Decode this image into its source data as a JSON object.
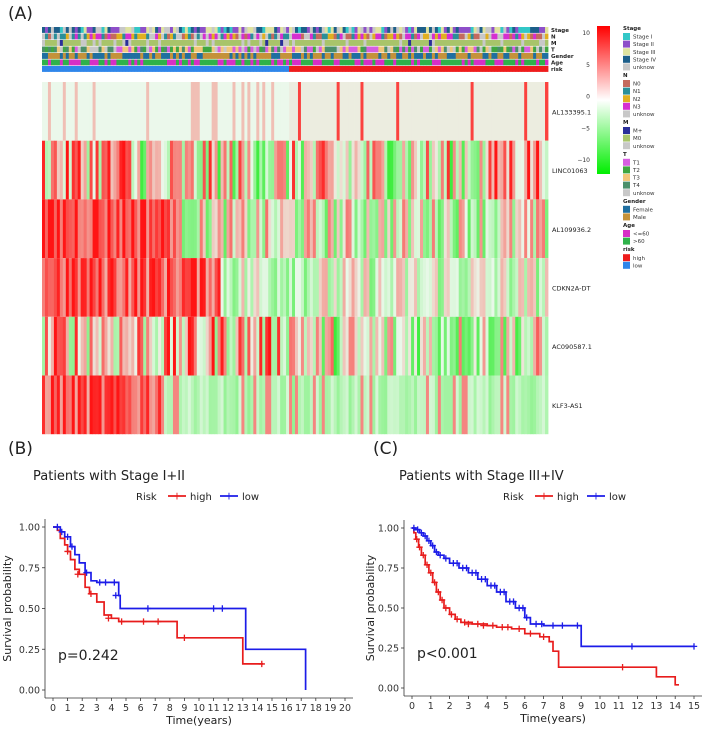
{
  "panels": {
    "a": "(A)",
    "b": "(B)",
    "c": "(C)"
  },
  "chart_data": [
    {
      "type": "heatmap",
      "panel": "(A)",
      "annotation_tracks": [
        "Stage",
        "N",
        "M",
        "T",
        "Gender",
        "Age",
        "risk"
      ],
      "rows": [
        "AL133395.1",
        "LINC01063",
        "AL109936.2",
        "CDKN2A-DT",
        "AC090587.1",
        "KLF3-AS1"
      ],
      "colorbar": {
        "ticks": [
          10,
          5,
          0,
          -5,
          -10
        ],
        "high_color": "#ff0000",
        "mid_color": "#ffffff",
        "low_color": "#00ee00"
      },
      "legend": [
        {
          "title": "Stage",
          "items": [
            {
              "label": "Stage I",
              "color": "#33c7c7"
            },
            {
              "label": "Stage II",
              "color": "#8e4fc9"
            },
            {
              "label": "Stage III",
              "color": "#dfe3a0"
            },
            {
              "label": "Stage IV",
              "color": "#1d5f8a"
            },
            {
              "label": "unknow",
              "color": "#c8c8c8"
            }
          ]
        },
        {
          "title": "N",
          "items": [
            {
              "label": "N0",
              "color": "#c46a5e"
            },
            {
              "label": "N1",
              "color": "#2a8f99"
            },
            {
              "label": "N2",
              "color": "#e0b020"
            },
            {
              "label": "N3",
              "color": "#d62fd0"
            },
            {
              "label": "unknow",
              "color": "#c8c8c8"
            }
          ]
        },
        {
          "title": "M",
          "items": [
            {
              "label": "M+",
              "color": "#2a2f9a"
            },
            {
              "label": "M0",
              "color": "#a8c46a"
            },
            {
              "label": "unknow",
              "color": "#c8c8c8"
            }
          ]
        },
        {
          "title": "T",
          "items": [
            {
              "label": "T1",
              "color": "#d65ee0"
            },
            {
              "label": "T2",
              "color": "#3fa640"
            },
            {
              "label": "T3",
              "color": "#f2c77a"
            },
            {
              "label": "T4",
              "color": "#4a8f6a"
            },
            {
              "label": "unknow",
              "color": "#c8c8c8"
            }
          ]
        },
        {
          "title": "Gender",
          "items": [
            {
              "label": "Female",
              "color": "#1f6fa0"
            },
            {
              "label": "Male",
              "color": "#c4923a"
            }
          ]
        },
        {
          "title": "Age",
          "items": [
            {
              "label": "<=60",
              "color": "#d62fc6"
            },
            {
              "label": ">60",
              "color": "#2fb24a"
            }
          ]
        },
        {
          "title": "risk",
          "items": [
            {
              "label": "high",
              "color": "#ee1c1c"
            },
            {
              "label": "low",
              "color": "#2f86ea"
            }
          ]
        }
      ],
      "risk_low_fraction": 0.49
    },
    {
      "type": "line",
      "panel": "(B)",
      "title": "Patients with Stage I+II",
      "legend_title": "Risk",
      "xlabel": "Time(years)",
      "ylabel": "Survival probability",
      "xlim": [
        0,
        20
      ],
      "ylim": [
        0,
        1
      ],
      "xticks": [
        0,
        1,
        2,
        3,
        4,
        5,
        6,
        7,
        8,
        9,
        10,
        11,
        12,
        13,
        14,
        15,
        16,
        17,
        18,
        19,
        20
      ],
      "yticks": [
        "0.00",
        "0.25",
        "0.50",
        "0.75",
        "1.00"
      ],
      "annotation": "p=0.242",
      "series": [
        {
          "name": "high",
          "color": "#e81c1c",
          "steps": [
            [
              0,
              1.0
            ],
            [
              0.3,
              0.98
            ],
            [
              0.5,
              0.93
            ],
            [
              0.8,
              0.89
            ],
            [
              1.0,
              0.85
            ],
            [
              1.2,
              0.8
            ],
            [
              1.5,
              0.74
            ],
            [
              1.8,
              0.71
            ],
            [
              2.2,
              0.63
            ],
            [
              2.5,
              0.59
            ],
            [
              3.0,
              0.54
            ],
            [
              3.5,
              0.46
            ],
            [
              4.0,
              0.44
            ],
            [
              4.5,
              0.42
            ],
            [
              8.5,
              0.32
            ],
            [
              13.0,
              0.16
            ],
            [
              14.4,
              0.16
            ]
          ],
          "censors": [
            [
              1.0,
              0.85
            ],
            [
              1.7,
              0.71
            ],
            [
              2.6,
              0.59
            ],
            [
              3.8,
              0.44
            ],
            [
              4.7,
              0.42
            ],
            [
              6.2,
              0.42
            ],
            [
              7.2,
              0.42
            ],
            [
              9.0,
              0.32
            ],
            [
              14.3,
              0.16
            ]
          ]
        },
        {
          "name": "low",
          "color": "#1c1ce8",
          "steps": [
            [
              0,
              1.0
            ],
            [
              0.5,
              0.97
            ],
            [
              0.8,
              0.94
            ],
            [
              1.2,
              0.88
            ],
            [
              1.5,
              0.83
            ],
            [
              1.8,
              0.78
            ],
            [
              2.2,
              0.72
            ],
            [
              2.6,
              0.67
            ],
            [
              3.0,
              0.66
            ],
            [
              4.5,
              0.58
            ],
            [
              4.6,
              0.5
            ],
            [
              13.2,
              0.25
            ],
            [
              17.3,
              0.0
            ]
          ],
          "censors": [
            [
              0.3,
              1.0
            ],
            [
              0.6,
              0.97
            ],
            [
              1.0,
              0.94
            ],
            [
              1.3,
              0.88
            ],
            [
              2.3,
              0.72
            ],
            [
              3.2,
              0.66
            ],
            [
              3.6,
              0.66
            ],
            [
              4.2,
              0.66
            ],
            [
              4.3,
              0.58
            ],
            [
              6.5,
              0.5
            ],
            [
              11.0,
              0.5
            ],
            [
              11.6,
              0.5
            ]
          ]
        }
      ]
    },
    {
      "type": "line",
      "panel": "(C)",
      "title": "Patients with Stage III+IV",
      "legend_title": "Risk",
      "xlabel": "Time(years)",
      "ylabel": "Survival probability",
      "xlim": [
        0,
        15
      ],
      "ylim": [
        0,
        1
      ],
      "xticks": [
        0,
        1,
        2,
        3,
        4,
        5,
        6,
        7,
        8,
        9,
        10,
        11,
        12,
        13,
        14,
        15
      ],
      "yticks": [
        "0.00",
        "0.25",
        "0.50",
        "0.75",
        "1.00"
      ],
      "annotation": "p<0.001",
      "series": [
        {
          "name": "high",
          "color": "#e81c1c",
          "steps": [
            [
              0,
              1.0
            ],
            [
              0.1,
              0.97
            ],
            [
              0.2,
              0.93
            ],
            [
              0.35,
              0.88
            ],
            [
              0.5,
              0.83
            ],
            [
              0.7,
              0.77
            ],
            [
              0.9,
              0.72
            ],
            [
              1.1,
              0.66
            ],
            [
              1.3,
              0.6
            ],
            [
              1.5,
              0.55
            ],
            [
              1.7,
              0.5
            ],
            [
              2.0,
              0.46
            ],
            [
              2.3,
              0.43
            ],
            [
              2.6,
              0.41
            ],
            [
              3.2,
              0.4
            ],
            [
              4.0,
              0.39
            ],
            [
              4.5,
              0.38
            ],
            [
              5.3,
              0.37
            ],
            [
              6.0,
              0.34
            ],
            [
              6.8,
              0.32
            ],
            [
              7.3,
              0.29
            ],
            [
              7.5,
              0.23
            ],
            [
              7.8,
              0.13
            ],
            [
              11.0,
              0.13
            ],
            [
              13.0,
              0.07
            ],
            [
              14.0,
              0.02
            ],
            [
              14.2,
              0.02
            ]
          ],
          "censors": [
            [
              0.25,
              0.93
            ],
            [
              0.4,
              0.88
            ],
            [
              0.6,
              0.83
            ],
            [
              0.8,
              0.77
            ],
            [
              1.0,
              0.72
            ],
            [
              1.2,
              0.66
            ],
            [
              1.4,
              0.6
            ],
            [
              1.6,
              0.55
            ],
            [
              1.8,
              0.5
            ],
            [
              2.1,
              0.46
            ],
            [
              2.4,
              0.43
            ],
            [
              2.8,
              0.41
            ],
            [
              3.0,
              0.4
            ],
            [
              3.5,
              0.4
            ],
            [
              3.8,
              0.39
            ],
            [
              4.3,
              0.39
            ],
            [
              4.8,
              0.38
            ],
            [
              5.1,
              0.38
            ],
            [
              5.7,
              0.37
            ],
            [
              6.3,
              0.34
            ],
            [
              7.0,
              0.32
            ],
            [
              11.2,
              0.13
            ]
          ]
        },
        {
          "name": "low",
          "color": "#1c1ce8",
          "steps": [
            [
              0,
              1.0
            ],
            [
              0.2,
              0.99
            ],
            [
              0.4,
              0.97
            ],
            [
              0.6,
              0.95
            ],
            [
              0.8,
              0.92
            ],
            [
              1.0,
              0.89
            ],
            [
              1.2,
              0.85
            ],
            [
              1.4,
              0.83
            ],
            [
              1.7,
              0.81
            ],
            [
              2.0,
              0.78
            ],
            [
              2.5,
              0.75
            ],
            [
              3.0,
              0.72
            ],
            [
              3.5,
              0.68
            ],
            [
              4.0,
              0.64
            ],
            [
              4.5,
              0.6
            ],
            [
              5.0,
              0.54
            ],
            [
              5.5,
              0.5
            ],
            [
              6.0,
              0.44
            ],
            [
              6.3,
              0.4
            ],
            [
              7.0,
              0.39
            ],
            [
              9.0,
              0.26
            ],
            [
              15.0,
              0.26
            ]
          ],
          "censors": [
            [
              0.1,
              1.0
            ],
            [
              0.3,
              0.99
            ],
            [
              0.5,
              0.97
            ],
            [
              0.7,
              0.95
            ],
            [
              0.9,
              0.92
            ],
            [
              1.1,
              0.89
            ],
            [
              1.3,
              0.85
            ],
            [
              1.5,
              0.83
            ],
            [
              1.8,
              0.81
            ],
            [
              2.2,
              0.78
            ],
            [
              2.4,
              0.78
            ],
            [
              2.7,
              0.75
            ],
            [
              2.9,
              0.75
            ],
            [
              3.2,
              0.72
            ],
            [
              3.4,
              0.72
            ],
            [
              3.7,
              0.68
            ],
            [
              3.9,
              0.68
            ],
            [
              4.2,
              0.64
            ],
            [
              4.4,
              0.64
            ],
            [
              4.7,
              0.6
            ],
            [
              4.9,
              0.6
            ],
            [
              5.2,
              0.54
            ],
            [
              5.4,
              0.54
            ],
            [
              5.7,
              0.5
            ],
            [
              5.9,
              0.5
            ],
            [
              6.1,
              0.44
            ],
            [
              6.6,
              0.4
            ],
            [
              6.9,
              0.4
            ],
            [
              7.5,
              0.39
            ],
            [
              8.0,
              0.39
            ],
            [
              8.8,
              0.39
            ],
            [
              11.7,
              0.26
            ],
            [
              15.0,
              0.26
            ]
          ]
        }
      ]
    }
  ]
}
